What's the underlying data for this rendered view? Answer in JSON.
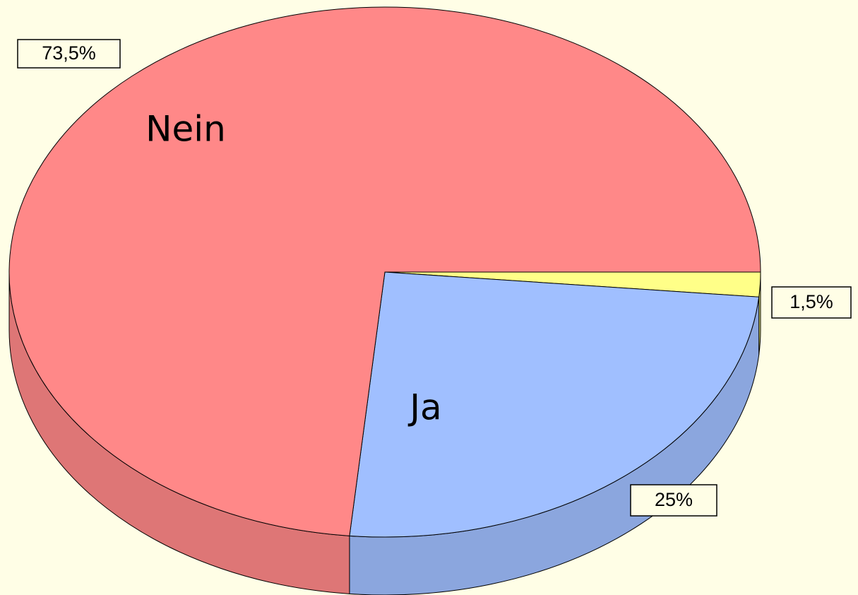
{
  "chart_data": {
    "type": "pie",
    "categories": [
      null,
      "Ja",
      "Nein"
    ],
    "values": [
      1.5,
      25,
      73.5
    ],
    "value_labels": [
      "1,5%",
      "25%",
      "73,5%"
    ],
    "colors": [
      "#ffff88",
      "#a0bfff",
      "#ff8888"
    ]
  }
}
